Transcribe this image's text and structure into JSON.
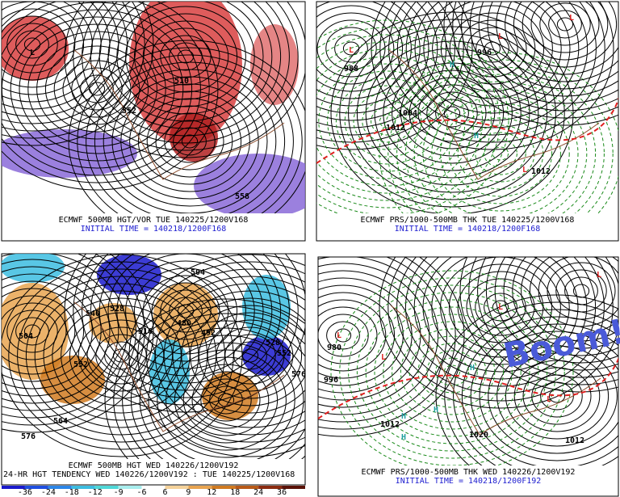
{
  "panels": [
    {
      "caption": "ECMWF 500MB HGT/VOR TUE 140225/1200V168",
      "initial": "INITIAL TIME = 140218/1200F168",
      "labels": [
        "552",
        "510",
        "558",
        "L"
      ]
    },
    {
      "caption": "ECMWF PRS/1000-500MB THK TUE 140225/1200V168",
      "initial": "INITIAL TIME = 140218/1200F168",
      "labels": [
        "L",
        "L",
        "L",
        "L",
        "H",
        "H",
        "1012",
        "1004",
        "996",
        "988",
        "1012"
      ]
    },
    {
      "caption": "ECMWF 500MB HGT WED 140226/1200V192",
      "initial": "24-HR HGT TENDENCY WED 140226/1200V192 : TUE 140225/1200V168",
      "labels": [
        "504",
        "540",
        "528",
        "516",
        "480",
        "492",
        "552",
        "564",
        "576",
        "528",
        "552",
        "576",
        "504"
      ]
    },
    {
      "caption": "ECMWF PRS/1000-500MB THK WED 140226/1200V192",
      "initial": "INITIAL TIME = 140218/1200F192",
      "labels": [
        "L",
        "L",
        "L",
        "L",
        "L",
        "H",
        "H",
        "H",
        "H",
        "996",
        "1012",
        "1020",
        "1012",
        "980"
      ]
    }
  ],
  "annotation": "Boom!",
  "colorbar": {
    "ticks": [
      "-36",
      "-24",
      "-18",
      "-12",
      "-9",
      "-6",
      "6",
      "9",
      "12",
      "18",
      "24",
      "36"
    ],
    "colors": [
      "#1a1acc",
      "#1f4fe0",
      "#2c86e8",
      "#3cbde0",
      "#4fd8d8",
      "#a8eeee",
      "#ffffff",
      "#f5d29a",
      "#e8a450",
      "#d07a20",
      "#b85a18",
      "#8a2b10",
      "#5a1208"
    ]
  }
}
